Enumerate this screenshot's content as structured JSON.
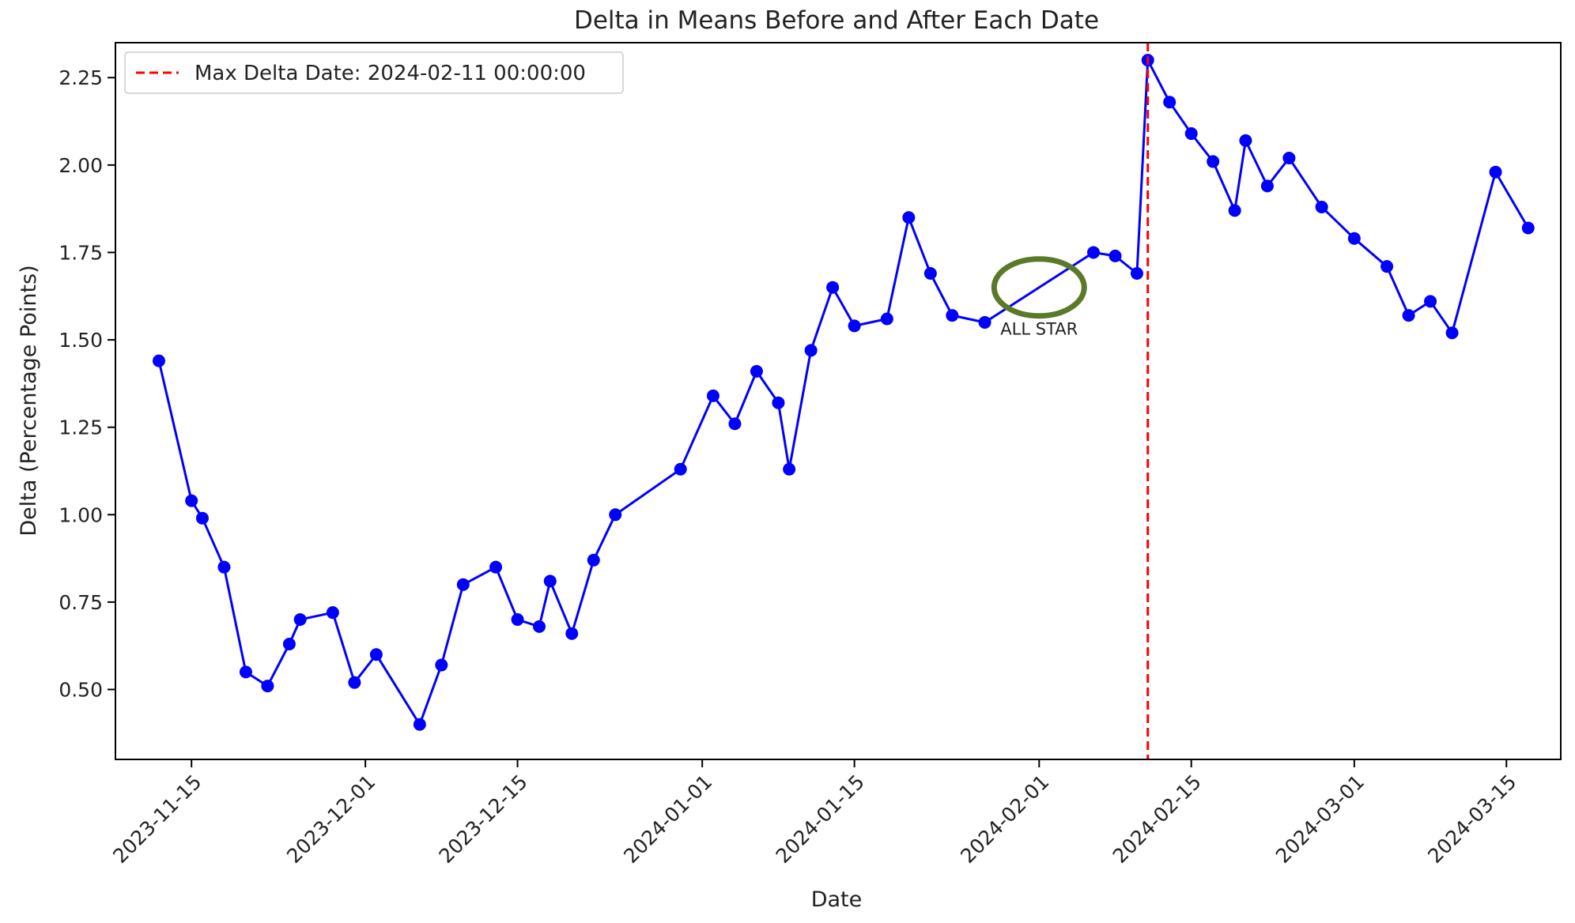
{
  "chart_data": {
    "type": "line",
    "title": "Delta in Means Before and After Each Date",
    "xlabel": "Date",
    "ylabel": "Delta (Percentage Points)",
    "xlim": [
      "2023-11-08",
      "2024-03-20"
    ],
    "ylim": [
      0.3,
      2.35
    ],
    "x_ticks": [
      "2023-11-15",
      "2023-12-01",
      "2023-12-15",
      "2024-01-01",
      "2024-01-15",
      "2024-02-01",
      "2024-02-15",
      "2024-03-01",
      "2024-03-15"
    ],
    "y_ticks": [
      "0.50",
      "0.75",
      "1.00",
      "1.25",
      "1.50",
      "1.75",
      "2.00",
      "2.25"
    ],
    "series": [
      {
        "name": "Delta",
        "color": "#0000ff",
        "x": [
          "2023-11-12",
          "2023-11-15",
          "2023-11-16",
          "2023-11-18",
          "2023-11-20",
          "2023-11-22",
          "2023-11-24",
          "2023-11-25",
          "2023-11-28",
          "2023-11-30",
          "2023-12-02",
          "2023-12-06",
          "2023-12-08",
          "2023-12-10",
          "2023-12-13",
          "2023-12-15",
          "2023-12-17",
          "2023-12-18",
          "2023-12-20",
          "2023-12-22",
          "2023-12-24",
          "2023-12-30",
          "2024-01-02",
          "2024-01-04",
          "2024-01-06",
          "2024-01-08",
          "2024-01-09",
          "2024-01-11",
          "2024-01-13",
          "2024-01-15",
          "2024-01-18",
          "2024-01-20",
          "2024-01-22",
          "2024-01-24",
          "2024-01-27",
          "2024-02-06",
          "2024-02-08",
          "2024-02-10",
          "2024-02-11",
          "2024-02-13",
          "2024-02-15",
          "2024-02-17",
          "2024-02-19",
          "2024-02-20",
          "2024-02-22",
          "2024-02-24",
          "2024-02-27",
          "2024-03-01",
          "2024-03-04",
          "2024-03-06",
          "2024-03-08",
          "2024-03-10",
          "2024-03-14",
          "2024-03-17"
        ],
        "values": [
          1.44,
          1.04,
          0.99,
          0.85,
          0.55,
          0.51,
          0.63,
          0.7,
          0.72,
          0.52,
          0.6,
          0.4,
          0.57,
          0.8,
          0.85,
          0.7,
          0.68,
          0.81,
          0.66,
          0.87,
          1.0,
          1.13,
          1.34,
          1.26,
          1.41,
          1.32,
          1.13,
          1.47,
          1.65,
          1.54,
          1.56,
          1.85,
          1.69,
          1.57,
          1.55,
          1.75,
          1.74,
          1.69,
          2.3,
          2.18,
          2.09,
          2.01,
          1.87,
          2.07,
          1.94,
          2.02,
          1.88,
          1.79,
          1.71,
          1.57,
          1.61,
          1.52,
          1.98,
          1.82
        ]
      }
    ],
    "vline": {
      "x": "2024-02-11",
      "color": "#ff0000",
      "style": "dashed"
    },
    "legend": {
      "position": "top-left",
      "entries": [
        {
          "label": "Max Delta Date: 2024-02-11 00:00:00",
          "color": "#ff0000",
          "style": "dashed"
        }
      ]
    },
    "annotation": {
      "text": "ALL STAR",
      "x": "2024-02-01",
      "y": 1.65,
      "color": "#5a7a2a"
    }
  }
}
